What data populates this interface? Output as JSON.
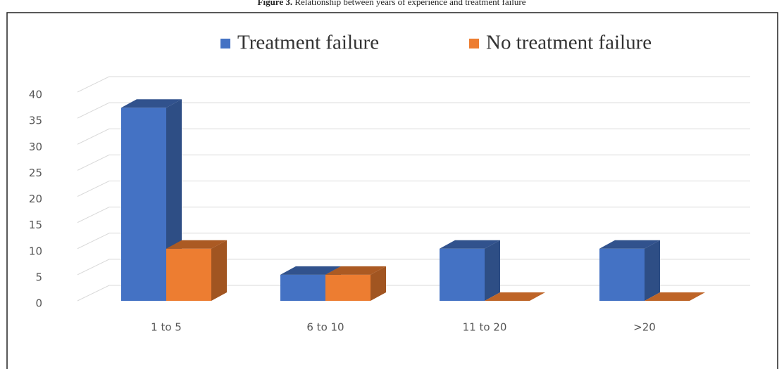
{
  "chart_data": {
    "type": "bar3d",
    "figure_label": "Figure 3.",
    "title": "Relationship between years of experience and treatment failure",
    "categories": [
      "1 to 5",
      "6 to 10",
      "11 to 20",
      ">20"
    ],
    "series": [
      {
        "name": "Treatment failure",
        "color": "#4472c4",
        "values": [
          37,
          5,
          10,
          10
        ]
      },
      {
        "name": "No treatment failure",
        "color": "#ed7d31",
        "values": [
          10,
          5,
          0,
          0
        ]
      }
    ],
    "ylim": [
      0,
      40
    ],
    "yticks": [
      0,
      5,
      10,
      15,
      20,
      25,
      30,
      35,
      40
    ],
    "grid": true,
    "legend": "top"
  }
}
